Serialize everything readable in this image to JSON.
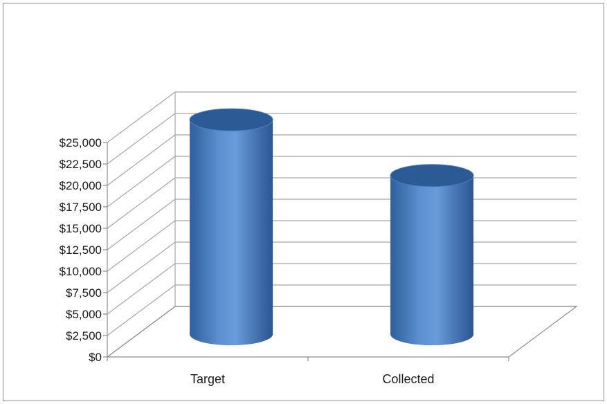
{
  "chart_data": {
    "type": "bar",
    "bar_shape": "3d-cylinder",
    "categories": [
      "Target",
      "Collected"
    ],
    "values": [
      25000,
      18500
    ],
    "ylim": [
      0,
      25000
    ],
    "yticks": [
      "$0",
      "$2,500",
      "$5,000",
      "$7,500",
      "$10,000",
      "$12,500",
      "$15,000",
      "$17,500",
      "$20,000",
      "$22,500",
      "$25,000"
    ],
    "grid": true,
    "legend": "none",
    "colors": {
      "bar": "#4a7ebb",
      "bar_dark": "#2b5a94",
      "bar_light": "#6f9fd8",
      "grid": "#a6a6a6"
    }
  }
}
